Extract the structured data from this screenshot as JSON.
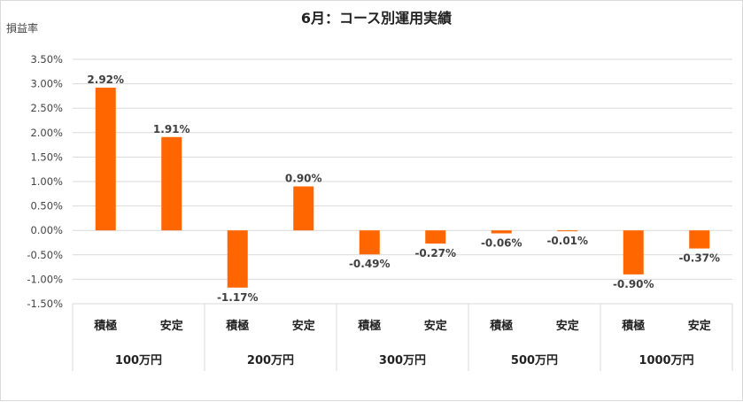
{
  "chart_data": {
    "type": "bar",
    "title": "6月：コース別運用実績",
    "ylabel": "損益率",
    "xlabel": "",
    "ylim": [
      -1.5,
      3.5
    ],
    "ytick_step": 0.5,
    "y_format": "percent_2dp",
    "grid": true,
    "legend": "none",
    "bar_color": "#ff6600",
    "groups": [
      {
        "label": "100万円",
        "items": [
          {
            "label": "積極",
            "value": 2.92,
            "value_label": "2.92%"
          },
          {
            "label": "安定",
            "value": 1.91,
            "value_label": "1.91%"
          }
        ]
      },
      {
        "label": "200万円",
        "items": [
          {
            "label": "積極",
            "value": -1.17,
            "value_label": "-1.17%"
          },
          {
            "label": "安定",
            "value": 0.9,
            "value_label": "0.90%"
          }
        ]
      },
      {
        "label": "300万円",
        "items": [
          {
            "label": "積極",
            "value": -0.49,
            "value_label": "-0.49%"
          },
          {
            "label": "安定",
            "value": -0.27,
            "value_label": "-0.27%"
          }
        ]
      },
      {
        "label": "500万円",
        "items": [
          {
            "label": "積極",
            "value": -0.06,
            "value_label": "-0.06%"
          },
          {
            "label": "安定",
            "value": -0.01,
            "value_label": "-0.01%"
          }
        ]
      },
      {
        "label": "1000万円",
        "items": [
          {
            "label": "積極",
            "value": -0.9,
            "value_label": "-0.90%"
          },
          {
            "label": "安定",
            "value": -0.37,
            "value_label": "-0.37%"
          }
        ]
      }
    ]
  }
}
